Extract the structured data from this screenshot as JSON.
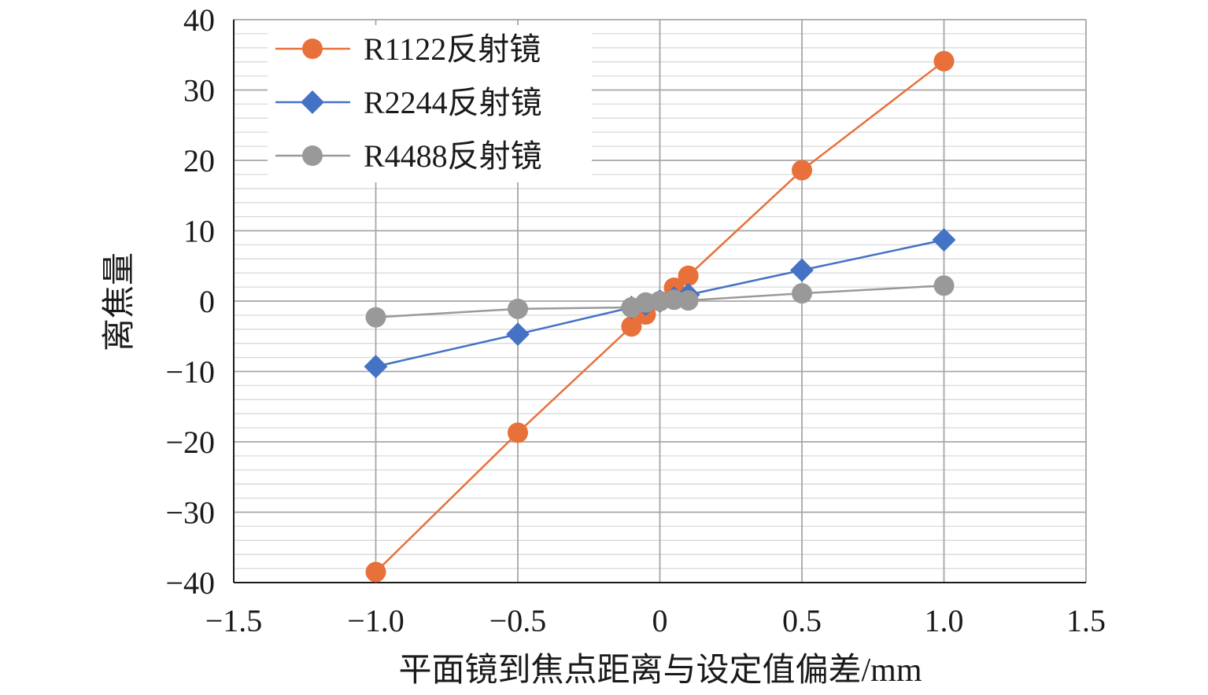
{
  "chart_data": {
    "type": "line",
    "xlabel": "平面镜到焦点距离与设定值偏差/mm",
    "ylabel": "离焦量",
    "xlim": [
      -1.5,
      1.5
    ],
    "ylim": [
      -40,
      40
    ],
    "x_ticks": [
      "−1.5",
      "−1.0",
      "−0.5",
      "0",
      "0.5",
      "1.0",
      "1.5"
    ],
    "y_ticks": [
      "40",
      "30",
      "20",
      "10",
      "0",
      "−10",
      "−20",
      "−30",
      "−40"
    ],
    "grid": true,
    "legend_position": "top-left",
    "series": [
      {
        "name": "R1122反射镜",
        "color": "#E8703A",
        "marker": "circle",
        "x": [
          -1.0,
          -0.5,
          -0.1,
          -0.05,
          0,
          0.05,
          0.1,
          0.5,
          1.0
        ],
        "y": [
          -38.5,
          -18.7,
          -3.6,
          -1.9,
          0,
          1.9,
          3.6,
          18.6,
          34.1
        ]
      },
      {
        "name": "R2244反射镜",
        "color": "#4472C4",
        "marker": "diamond",
        "x": [
          -1.0,
          -0.5,
          -0.1,
          -0.05,
          0,
          0.05,
          0.1,
          0.5,
          1.0
        ],
        "y": [
          -9.3,
          -4.7,
          -0.9,
          -0.45,
          0,
          0.45,
          0.9,
          4.4,
          8.7
        ]
      },
      {
        "name": "R4488反射镜",
        "color": "#999999",
        "marker": "circle",
        "x": [
          -1.0,
          -0.5,
          -0.1,
          -0.05,
          0,
          0.05,
          0.1,
          0.5,
          1.0
        ],
        "y": [
          -2.3,
          -1.1,
          -0.9,
          -0.2,
          0,
          0.2,
          0.1,
          1.1,
          2.2
        ]
      }
    ]
  }
}
